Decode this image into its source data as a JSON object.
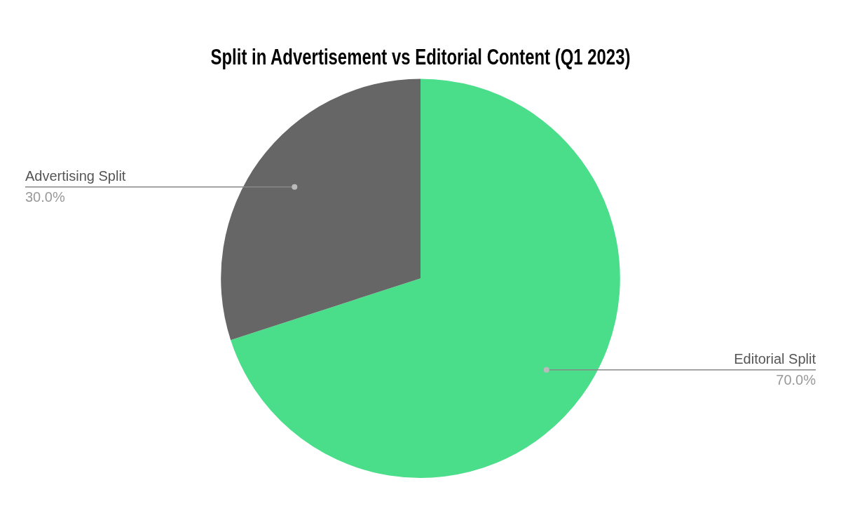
{
  "chart_data": {
    "type": "pie",
    "title": "Split in Advertisement vs Editorial Content (Q1 2023)",
    "categories": [
      "Editorial Split",
      "Advertising Split"
    ],
    "values": [
      70,
      30
    ],
    "colors": [
      "#4ade8a",
      "#666666"
    ],
    "value_labels": [
      "70.0%",
      "30.0%"
    ],
    "legend": false
  }
}
